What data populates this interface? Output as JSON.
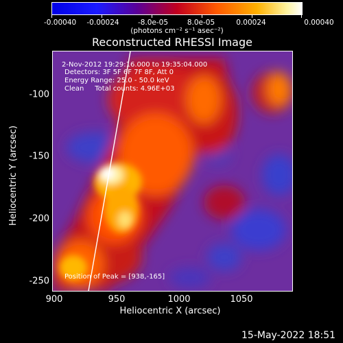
{
  "colorbar": {
    "tick_labels": [
      "-0.00040",
      "-0.00024",
      "-8.0e-05",
      "8.0e-05",
      "0.00024",
      "0.00040"
    ],
    "units": "(photons cm⁻² s⁻¹ asec⁻²)",
    "colors": [
      "#0000e6",
      "#5a0098",
      "#c2001f",
      "#ff5a00",
      "#ffb000",
      "#ffffff"
    ]
  },
  "title": "Reconstructed RHESSI Image",
  "info": {
    "time_range": "2-Nov-2012 19:29:16.000 to 19:35:04.000",
    "detectors": "Detectors: 3F 5F 6F 7F 8F, Att 0",
    "energy": "Energy Range: 25.0 - 50.0 keV",
    "clean": "Clean     Total counts: 4.96E+03",
    "peak": "Position of Peak = [938,-165]"
  },
  "axes": {
    "ylabel": "Heliocentric Y (arcsec)",
    "xlabel": "Heliocentric X (arcsec)",
    "yticks": [
      "-100",
      "-150",
      "-200",
      "-250"
    ],
    "xticks": [
      "900",
      "950",
      "1000",
      "1050"
    ]
  },
  "footer": "15-May-2022 18:51"
}
